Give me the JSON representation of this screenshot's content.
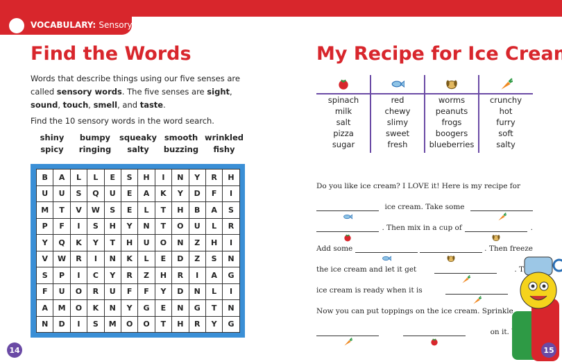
{
  "header": {
    "label": "VOCABULARY:",
    "topic": "Sensory Words"
  },
  "left_page": {
    "title": "Find the Words",
    "intro": [
      {
        "text": "Words that describe things using our five senses are called ",
        "bold": false
      },
      {
        "text": "sensory words",
        "bold": true
      },
      {
        "text": ". The five senses are ",
        "bold": false
      },
      {
        "text": "sight",
        "bold": true
      },
      {
        "text": ", ",
        "bold": false
      },
      {
        "text": "sound",
        "bold": true
      },
      {
        "text": ", ",
        "bold": false
      },
      {
        "text": "touch",
        "bold": true
      },
      {
        "text": ", ",
        "bold": false
      },
      {
        "text": "smell",
        "bold": true
      },
      {
        "text": ", and ",
        "bold": false
      },
      {
        "text": "taste",
        "bold": true
      },
      {
        "text": ".",
        "bold": false
      }
    ],
    "instruction": "Find the 10 sensory words in the word search.",
    "word_list": [
      [
        "shiny",
        "bumpy",
        "squeaky",
        "smooth",
        "wrinkled"
      ],
      [
        "spicy",
        "ringing",
        "salty",
        "buzzing",
        "fishy"
      ]
    ],
    "grid": [
      [
        "B",
        "A",
        "L",
        "L",
        "E",
        "S",
        "H",
        "I",
        "N",
        "Y",
        "R",
        "H"
      ],
      [
        "U",
        "U",
        "S",
        "Q",
        "U",
        "E",
        "A",
        "K",
        "Y",
        "D",
        "F",
        "I"
      ],
      [
        "M",
        "T",
        "V",
        "W",
        "S",
        "E",
        "L",
        "T",
        "H",
        "B",
        "A",
        "S"
      ],
      [
        "P",
        "F",
        "I",
        "S",
        "H",
        "Y",
        "N",
        "T",
        "O",
        "U",
        "L",
        "R"
      ],
      [
        "Y",
        "Q",
        "K",
        "Y",
        "T",
        "H",
        "U",
        "O",
        "N",
        "Z",
        "H",
        "I"
      ],
      [
        "V",
        "W",
        "R",
        "I",
        "N",
        "K",
        "L",
        "E",
        "D",
        "Z",
        "S",
        "N"
      ],
      [
        "S",
        "P",
        "I",
        "C",
        "Y",
        "R",
        "Z",
        "H",
        "R",
        "I",
        "A",
        "G"
      ],
      [
        "F",
        "U",
        "O",
        "R",
        "U",
        "F",
        "F",
        "Y",
        "D",
        "N",
        "L",
        "I"
      ],
      [
        "A",
        "M",
        "O",
        "K",
        "N",
        "Y",
        "G",
        "E",
        "N",
        "G",
        "T",
        "N"
      ],
      [
        "N",
        "D",
        "I",
        "S",
        "M",
        "O",
        "O",
        "T",
        "H",
        "R",
        "Y",
        "G"
      ]
    ],
    "page_number": "14"
  },
  "right_page": {
    "title": "My Recipe for Ice Cream",
    "word_bank": [
      {
        "icon": "tomato",
        "words": [
          "spinach",
          "milk",
          "salt",
          "pizza",
          "sugar"
        ]
      },
      {
        "icon": "fish",
        "words": [
          "red",
          "chewy",
          "slimy",
          "sweet",
          "fresh"
        ]
      },
      {
        "icon": "dog",
        "words": [
          "worms",
          "peanuts",
          "frogs",
          "boogers",
          "blueberries"
        ]
      },
      {
        "icon": "carrot",
        "words": [
          "crunchy",
          "hot",
          "furry",
          "soft",
          "salty"
        ]
      }
    ],
    "story": [
      [
        "Do you like ice cream? I LOVE it! Here is my recipe for"
      ],
      [
        {
          "icon": "fish"
        },
        "ice cream. Take some",
        {
          "icon": "carrot"
        }
      ],
      [
        {
          "icon": "tomato"
        },
        ". Then mix in a cup of",
        {
          "icon": "dog"
        },
        "."
      ],
      [
        "Add some",
        {
          "icon": "fish"
        },
        {
          "icon": "dog"
        },
        ". Then freeze"
      ],
      [
        "the ice cream and let it get",
        {
          "icon": "carrot"
        },
        ". The"
      ],
      [
        "ice cream is ready when it is",
        {
          "icon": "carrot"
        },
        "."
      ],
      [
        "Now you can put toppings on the ice cream. Sprinkle"
      ],
      [
        {
          "icon": "carrot"
        },
        {
          "icon": "tomato"
        },
        "on it. YUM!"
      ]
    ],
    "page_number": "15"
  }
}
